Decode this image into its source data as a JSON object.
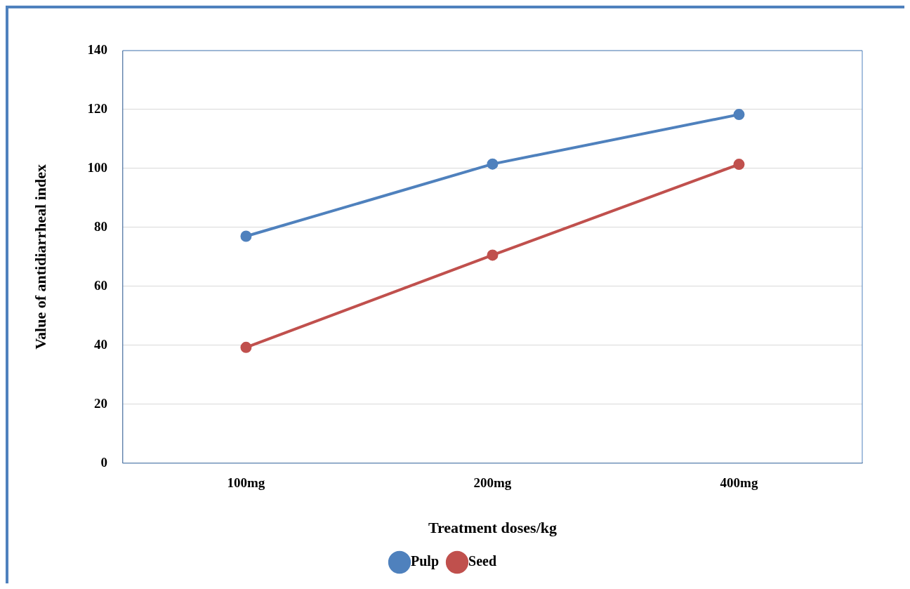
{
  "chart_data": {
    "type": "line",
    "xlabel": "Treatment doses/kg",
    "ylabel": "Value of antidiarrheal index",
    "categories": [
      "100mg",
      "200mg",
      "400mg"
    ],
    "series": [
      {
        "name": "Pulp",
        "color": "#4f81bd",
        "values": [
          77,
          101.5,
          118.3
        ]
      },
      {
        "name": "Seed",
        "color": "#c0504d",
        "values": [
          39.3,
          70.6,
          101.4
        ]
      }
    ],
    "ylim": [
      0,
      140
    ],
    "yticks": [
      0,
      20,
      40,
      60,
      80,
      100,
      120,
      140
    ],
    "grid": "y",
    "legend": "bottom",
    "marker": "circle",
    "line_style": "solid"
  }
}
